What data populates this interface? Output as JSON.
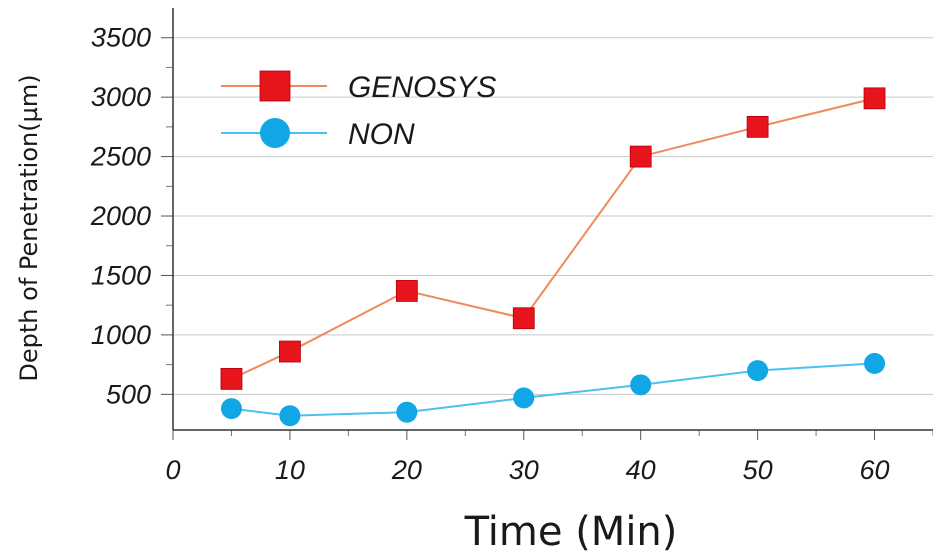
{
  "chart_data": {
    "type": "line",
    "title": "",
    "xlabel": "Time (Min)",
    "ylabel": "Depth of Penetration(µm)",
    "xlim": [
      0,
      65
    ],
    "ylim": [
      200,
      3750
    ],
    "x_ticks": [
      "0",
      "10",
      "20",
      "30",
      "40",
      "50",
      "60"
    ],
    "y_ticks": [
      "500",
      "1000",
      "1500",
      "2000",
      "2500",
      "3000",
      "3500"
    ],
    "grid": "horizontal",
    "legend_position": "top-left",
    "series": [
      {
        "name": "GENOSYS",
        "marker": "square",
        "color": "#e8141c",
        "line_color": "#f08a5c",
        "x": [
          5,
          10,
          20,
          30,
          40,
          50,
          60
        ],
        "y": [
          630,
          860,
          1370,
          1140,
          2500,
          2750,
          2990
        ]
      },
      {
        "name": "NON",
        "marker": "circle",
        "color": "#11a6e6",
        "line_color": "#4cc0ee",
        "x": [
          5,
          10,
          20,
          30,
          40,
          50,
          60
        ],
        "y": [
          380,
          320,
          350,
          470,
          580,
          700,
          760
        ]
      }
    ]
  }
}
